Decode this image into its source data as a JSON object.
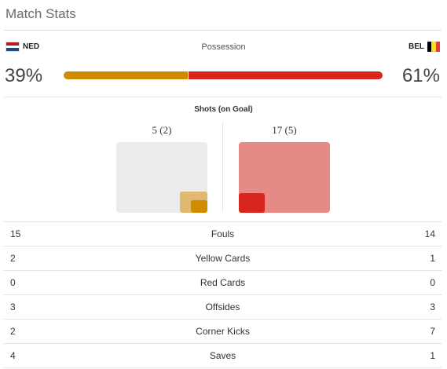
{
  "header": {
    "title": "Match Stats"
  },
  "teams": {
    "home": {
      "abbr": "NED",
      "flag_colors": [
        "#ae1c28",
        "#ffffff",
        "#21468b"
      ]
    },
    "away": {
      "abbr": "BEL",
      "flag_colors": [
        "#000000",
        "#fdda24",
        "#ef3340"
      ]
    }
  },
  "possession": {
    "label": "Possession",
    "home_pct": "39%",
    "away_pct": "61%",
    "home_value": 39,
    "away_value": 61,
    "home_color": "#d08c00",
    "away_color": "#d6261d"
  },
  "shots": {
    "label": "Shots (on Goal)",
    "home": "5 (2)",
    "away": "17 (5)",
    "home_total": 5,
    "home_on_goal": 2,
    "away_total": 17,
    "away_on_goal": 5,
    "colors": {
      "home_bg": "#ececee",
      "home_total": "#e0b870",
      "home_on_goal": "#d08c00",
      "away_bg": "#e58a84",
      "away_on_goal": "#d6261d"
    }
  },
  "stats": [
    {
      "label": "Fouls",
      "home": "15",
      "away": "14"
    },
    {
      "label": "Yellow Cards",
      "home": "2",
      "away": "1"
    },
    {
      "label": "Red Cards",
      "home": "0",
      "away": "0"
    },
    {
      "label": "Offsides",
      "home": "3",
      "away": "3"
    },
    {
      "label": "Corner Kicks",
      "home": "2",
      "away": "7"
    },
    {
      "label": "Saves",
      "home": "4",
      "away": "1"
    }
  ]
}
